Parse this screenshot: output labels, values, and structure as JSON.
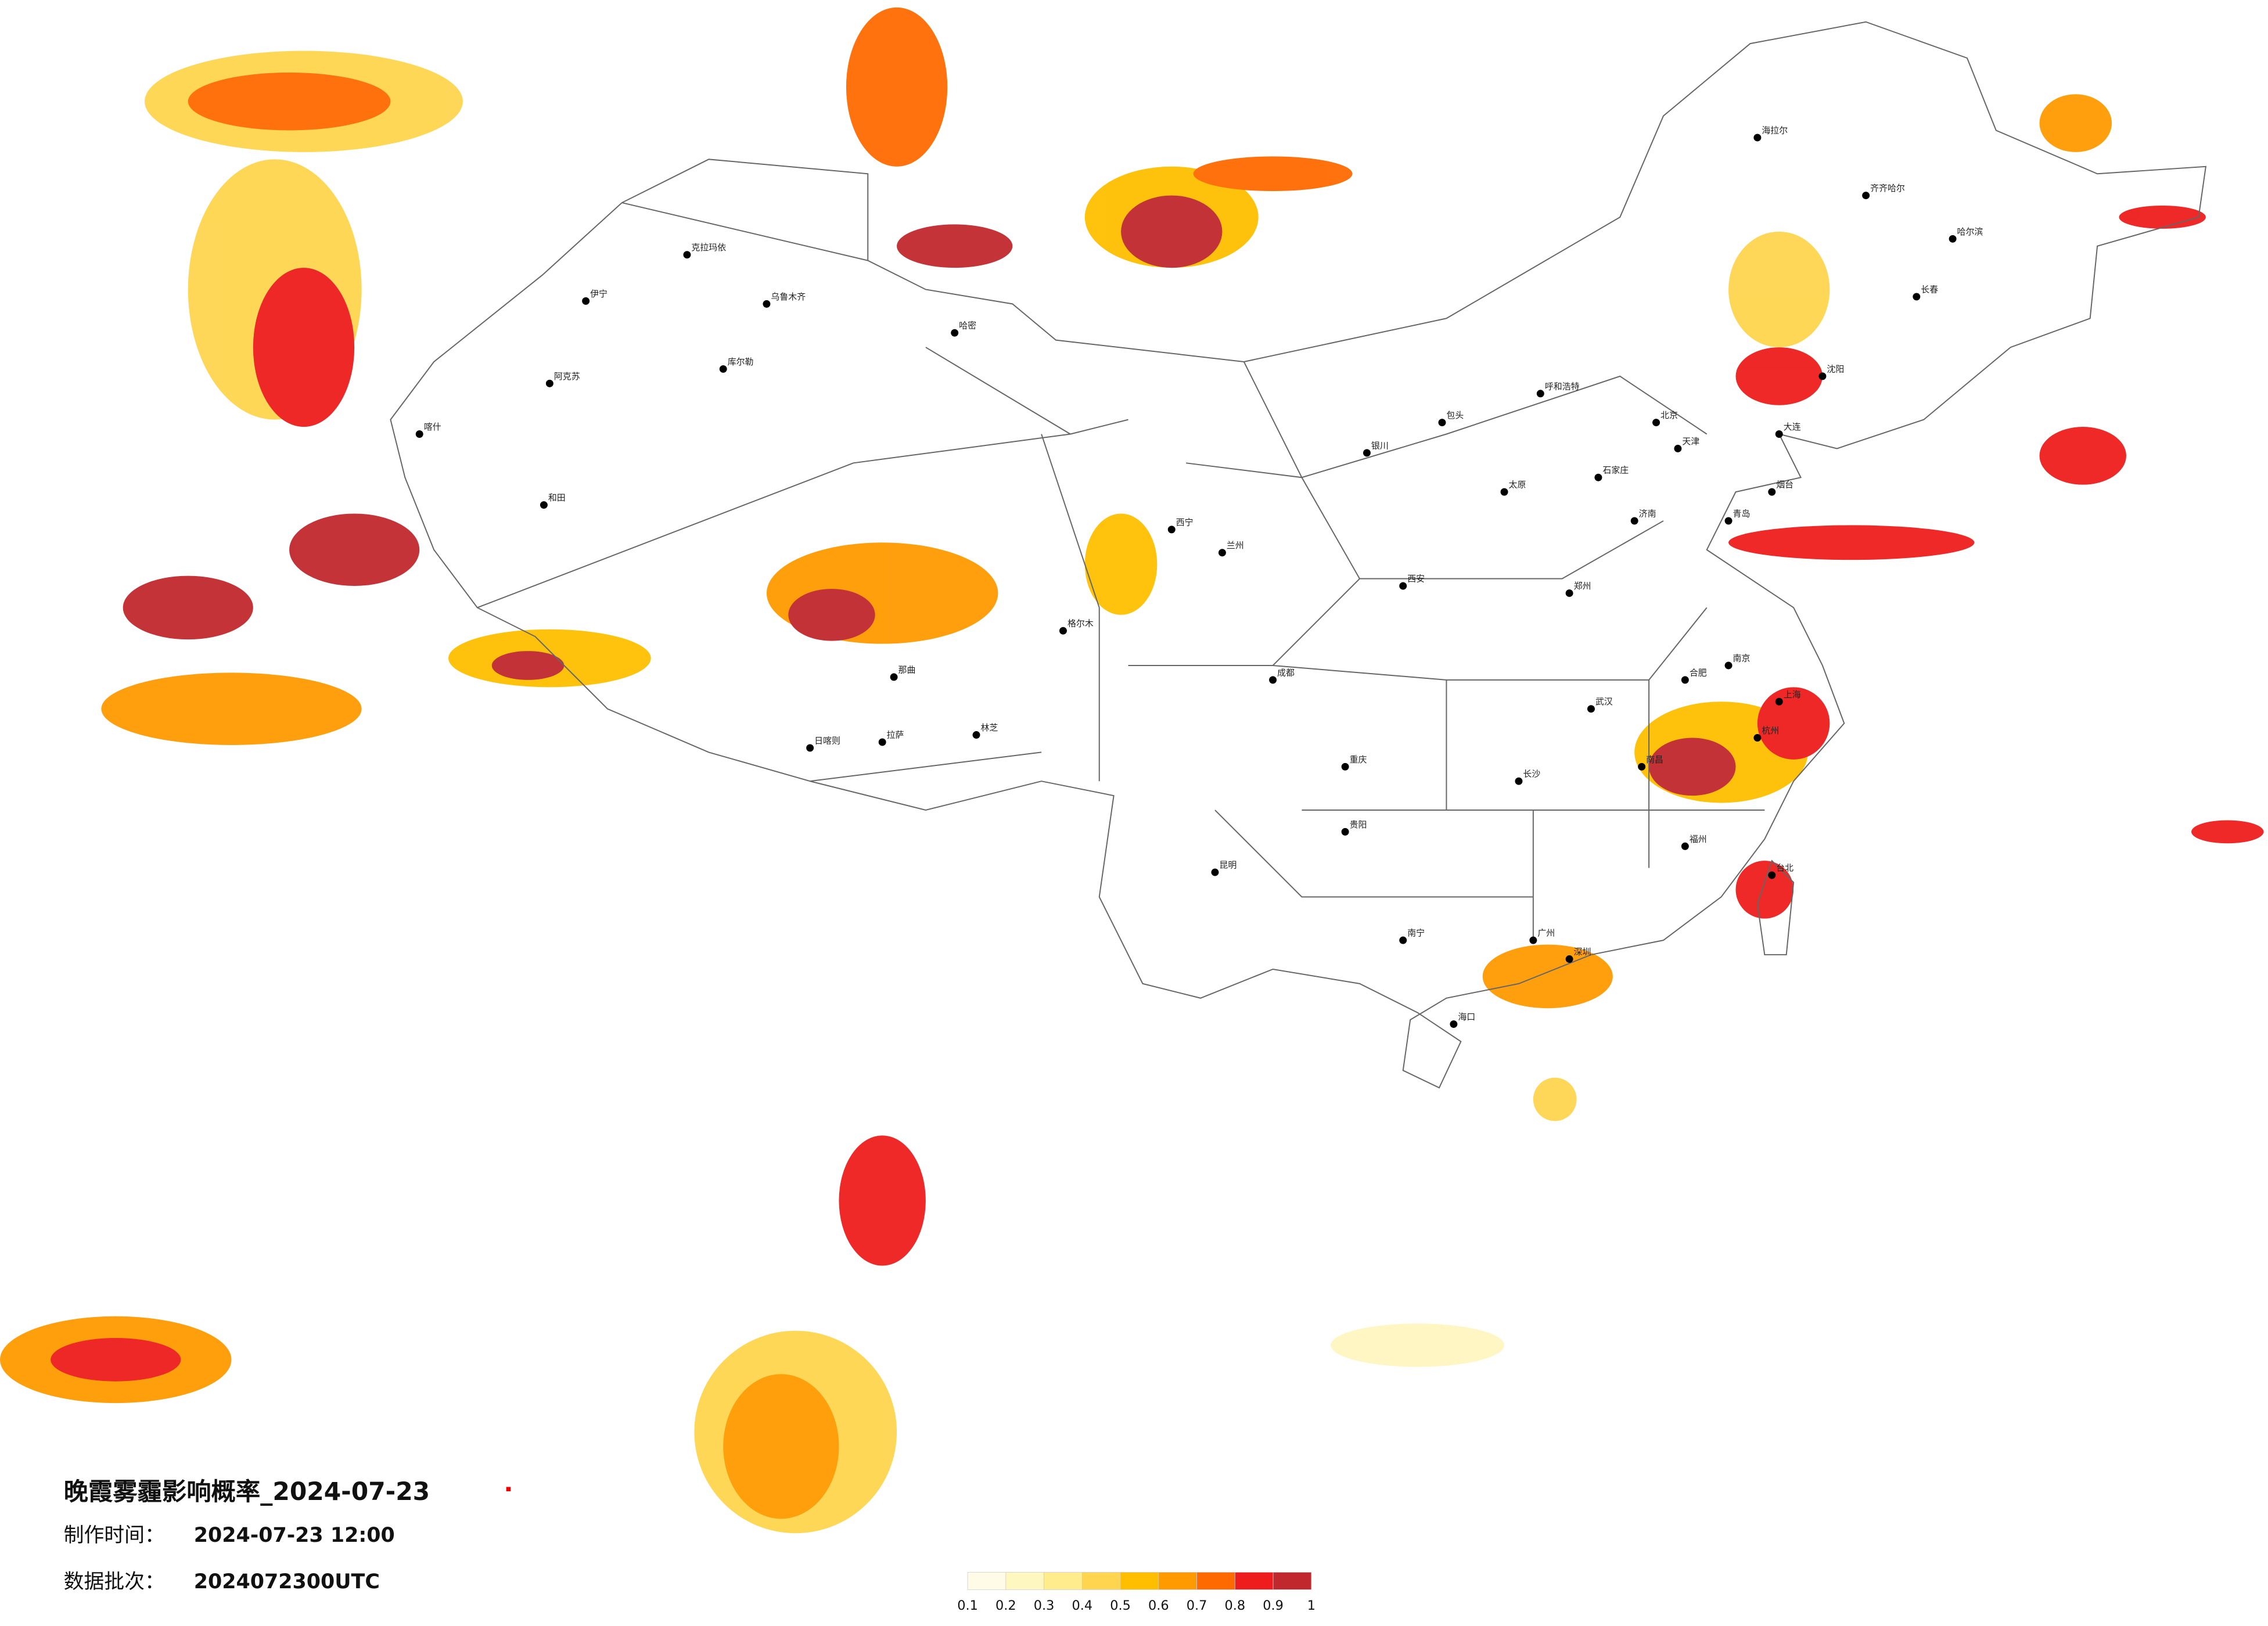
{
  "title": "晚霞雾霾影响概率_2024-07-23",
  "made_label": "制作时间：",
  "made_time": "2024-07-23 12:00",
  "batch_label": "数据批次：",
  "batch": "2024072300UTC",
  "legend": {
    "colors": [
      "#fffbe6",
      "#fff6c0",
      "#ffec8c",
      "#ffd54f",
      "#ffbf00",
      "#ff9a00",
      "#ff6a00",
      "#ee1c1c",
      "#c0282d"
    ],
    "ticks": [
      0.1,
      0.2,
      0.3,
      0.4,
      0.5,
      0.6,
      0.7,
      0.8,
      0.9,
      1
    ]
  },
  "cities": [
    "克拉玛依",
    "乌鲁木齐",
    "伊宁",
    "库尔勒",
    "阿克苏",
    "喀什",
    "和田",
    "哈密",
    "拉萨",
    "日喀则",
    "林芝",
    "那曲",
    "格尔木",
    "西宁",
    "兰州",
    "银川",
    "呼和浩特",
    "包头",
    "北京",
    "天津",
    "石家庄",
    "太原",
    "济南",
    "郑州",
    "西安",
    "成都",
    "重庆",
    "贵阳",
    "昆明",
    "南宁",
    "广州",
    "深圳",
    "海口",
    "长沙",
    "武汉",
    "南昌",
    "合肥",
    "南京",
    "上海",
    "杭州",
    "福州",
    "台北",
    "沈阳",
    "长春",
    "哈尔滨",
    "齐齐哈尔",
    "海拉尔",
    "大连",
    "青岛",
    "烟台"
  ]
}
